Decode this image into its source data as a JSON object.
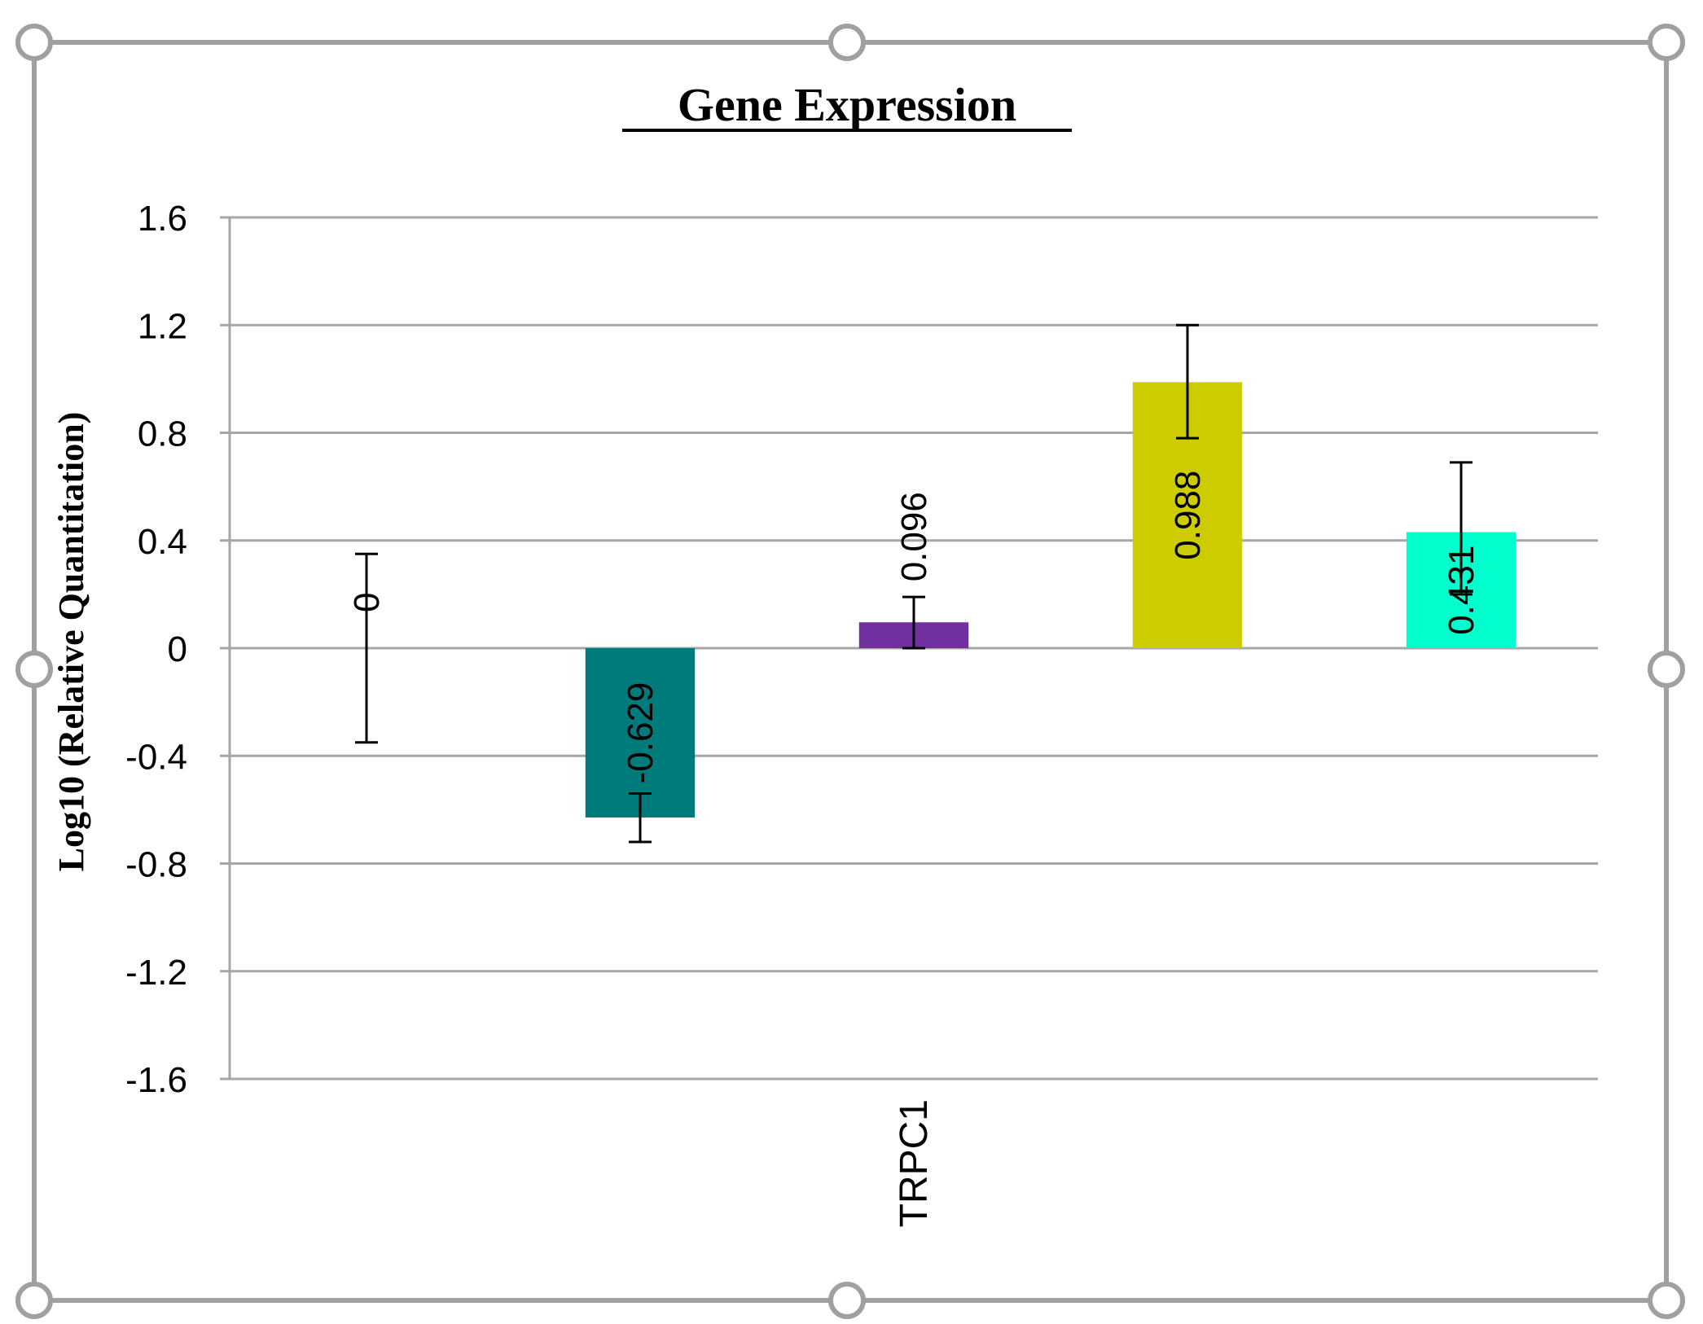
{
  "chart_data": {
    "type": "bar",
    "title": "Gene Expression",
    "ylabel": "Log10 (Relative Quantitation)",
    "xlabel": "",
    "category_label": "TRPC1",
    "ylim": [
      -1.6,
      1.6
    ],
    "yticks": [
      "1.6",
      "1.2",
      "0.8",
      "0.4",
      "0",
      "-0.4",
      "-0.8",
      "-1.2",
      "-1.6"
    ],
    "grid": true,
    "legend": "none",
    "bars": [
      {
        "value": 0,
        "label": "0",
        "color": "#ffffff",
        "err_low": -0.35,
        "err_high": 0.35
      },
      {
        "value": -0.629,
        "label": "-0.629",
        "color": "#007b7b",
        "err_low": -0.72,
        "err_high": -0.54
      },
      {
        "value": 0.096,
        "label": "0.096",
        "color": "#7030a0",
        "err_low": 0.0,
        "err_high": 0.19
      },
      {
        "value": 0.988,
        "label": "0.988",
        "color": "#cccc00",
        "err_low": 0.78,
        "err_high": 1.2
      },
      {
        "value": 0.431,
        "label": "0.431",
        "color": "#00ffcc",
        "err_low": 0.2,
        "err_high": 0.69
      }
    ]
  }
}
